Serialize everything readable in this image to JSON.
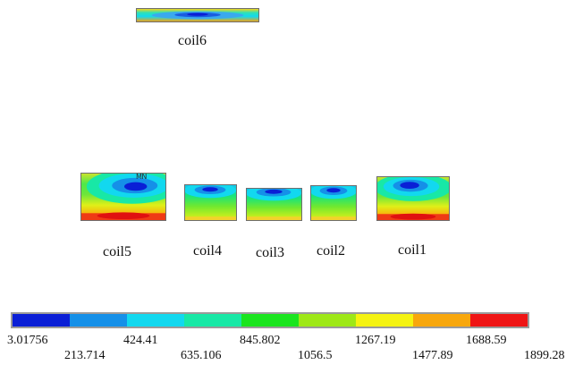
{
  "coils": {
    "coil6": {
      "label": "coil6"
    },
    "coil5": {
      "label": "coil5",
      "marker": "MN"
    },
    "coil4": {
      "label": "coil4"
    },
    "coil3": {
      "label": "coil3"
    },
    "coil2": {
      "label": "coil2"
    },
    "coil1": {
      "label": "coil1"
    }
  },
  "legend": {
    "colors": [
      "#0a1fd6",
      "#1590e8",
      "#12d8ef",
      "#18e8a6",
      "#1ae51e",
      "#9ee817",
      "#f5f311",
      "#f8a70c",
      "#ef1515"
    ],
    "ticks_top": [
      "3.01756",
      "424.41",
      "845.802",
      "1267.19",
      "1688.59"
    ],
    "ticks_bottom": [
      "213.714",
      "635.106",
      "1056.5",
      "1477.89",
      "1899.28"
    ]
  }
}
